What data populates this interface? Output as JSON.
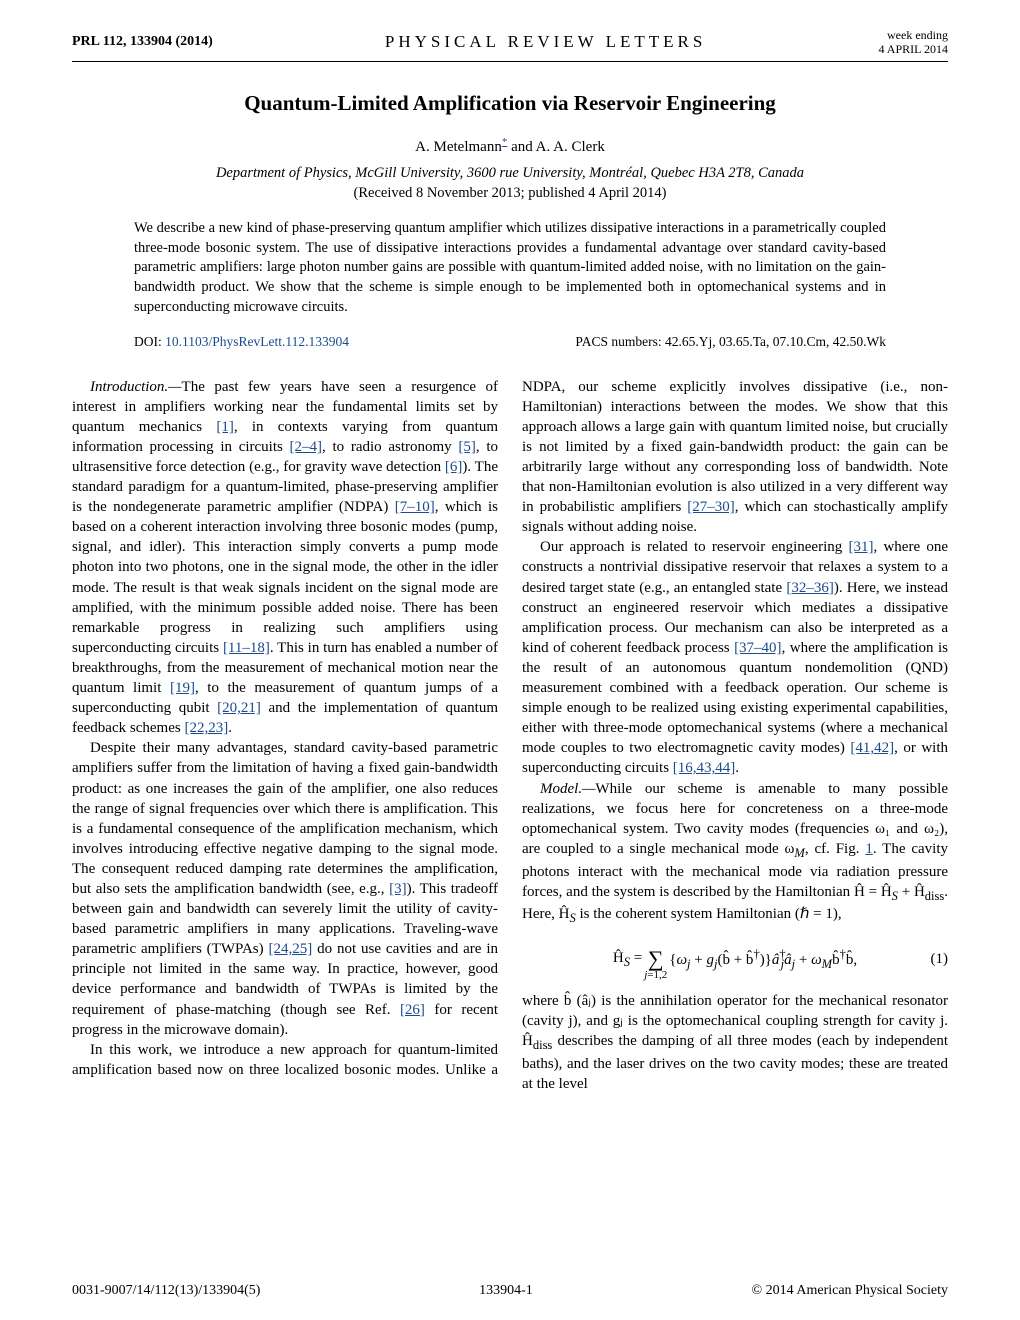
{
  "header": {
    "left": "PRL 112, 133904 (2014)",
    "center": "PHYSICAL REVIEW LETTERS",
    "right_line1": "week ending",
    "right_line2": "4 APRIL 2014"
  },
  "title": "Quantum-Limited Amplification via Reservoir Engineering",
  "authors_pre": "A. Metelmann",
  "authors_post": " and A. A. Clerk",
  "affiliation": "Department of Physics, McGill University, 3600 rue University, Montréal, Quebec H3A 2T8, Canada",
  "dates": "(Received 8 November 2013; published 4 April 2014)",
  "abstract": "We describe a new kind of phase-preserving quantum amplifier which utilizes dissipative interactions in a parametrically coupled three-mode bosonic system. The use of dissipative interactions provides a fundamental advantage over standard cavity-based parametric amplifiers: large photon number gains are possible with quantum-limited added noise, with no limitation on the gain-bandwidth product. We show that the scheme is simple enough to be implemented both in optomechanical systems and in superconducting microwave circuits.",
  "doi_label": "DOI: ",
  "doi_link": "10.1103/PhysRevLett.112.133904",
  "pacs": "PACS numbers: 42.65.Yj, 03.65.Ta, 07.10.Cm, 42.50.Wk",
  "body": {
    "intro_head": "Introduction.—",
    "p1a": "The past few years have seen a resurgence of interest in amplifiers working near the fundamental limits set by quantum mechanics ",
    "r1": "[1]",
    "p1b": ", in contexts varying from quantum information processing in circuits ",
    "r2": "[2–4]",
    "p1c": ", to radio astronomy ",
    "r3": "[5]",
    "p1d": ", to ultrasensitive force detection (e.g., for gravity wave detection ",
    "r4": "[6]",
    "p1e": "). The standard paradigm for a quantum-limited, phase-preserving amplifier is the nondegenerate parametric amplifier (NDPA) ",
    "r5": "[7–10]",
    "p1f": ", which is based on a coherent interaction involving three bosonic modes (pump, signal, and idler). This interaction simply converts a pump mode photon into two photons, one in the signal mode, the other in the idler mode. The result is that weak signals incident on the signal mode are amplified, with the minimum possible added noise. There has been remarkable progress in realizing such amplifiers using superconducting circuits ",
    "r6": "[11–18]",
    "p1g": ". This in turn has enabled a number of breakthroughs, from the measurement of mechanical motion near the quantum limit ",
    "r7": "[19]",
    "p1h": ", to the measurement of quantum jumps of a superconducting qubit ",
    "r8": "[20,21]",
    "p1i": " and the implementation of quantum feedback schemes ",
    "r9": "[22,23]",
    "p1j": ".",
    "p2a": "Despite their many advantages, standard cavity-based parametric amplifiers suffer from the limitation of having a fixed gain-bandwidth product: as one increases the gain of the amplifier, one also reduces the range of signal frequencies over which there is amplification. This is a fundamental consequence of the amplification mechanism, which involves introducing effective negative damping to the signal mode. The consequent reduced damping rate determines the amplification, but also sets the amplification bandwidth (see, e.g., ",
    "r10": "[3]",
    "p2b": "). This tradeoff between gain and bandwidth can severely limit the utility of cavity-based parametric amplifiers in many applications. Traveling-wave parametric amplifiers (TWPAs) ",
    "r11": "[24,25]",
    "p2c": " do not use cavities and are in principle not limited in the same way. In practice, however, good device performance and bandwidth of TWPAs is limited by the requirement of phase-matching (though see Ref. ",
    "r12": "[26]",
    "p2d": " for recent progress in the microwave domain).",
    "p3": "In this work, we introduce a new approach for quantum-limited amplification based now on three localized bosonic ",
    "p4a": "modes. Unlike a NDPA, our scheme explicitly involves dissipative (i.e., non-Hamiltonian) interactions between the modes. We show that this approach allows a large gain with quantum limited noise, but crucially is not limited by a fixed gain-bandwidth product: the gain can be arbitrarily large without any corresponding loss of bandwidth. Note that non-Hamiltonian evolution is also utilized in a very different way in probabilistic amplifiers ",
    "r13": "[27–30]",
    "p4b": ", which can stochastically amplify signals without adding noise.",
    "p5a": "Our approach is related to reservoir engineering ",
    "r14": "[31]",
    "p5b": ", where one constructs a nontrivial dissipative reservoir that relaxes a system to a desired target state (e.g., an entangled state ",
    "r15": "[32–36]",
    "p5c": "). Here, we instead construct an engineered reservoir which mediates a dissipative amplification process. Our mechanism can also be interpreted as a kind of coherent feedback process ",
    "r16": "[37–40]",
    "p5d": ", where the amplification is the result of an autonomous quantum nondemolition (QND) measurement combined with a feedback operation. Our scheme is simple enough to be realized using existing experimental capabilities, either with three-mode optomechanical systems (where a mechanical mode couples to two electromagnetic cavity modes) ",
    "r17": "[41,42]",
    "p5e": ", or with superconducting circuits ",
    "r18": "[16,43,44]",
    "p5f": ".",
    "model_head": "Model.—",
    "p6a": "While our scheme is amenable to many possible realizations, we focus here for concreteness on a three-mode optomechanical system. Two cavity modes (frequencies ω₁ and ω₂), are coupled to a single mechanical mode ω",
    "p6a_sub": "M",
    "p6a2": ", cf. Fig. ",
    "fig1": "1",
    "p6b": ". The cavity photons interact with the mechanical mode via radiation pressure forces, and the system is described by the Hamiltonian ",
    "p6c": ". Here, ",
    "p6d": " is the coherent system Hamiltonian (ℏ = 1),",
    "eq1_num": "(1)",
    "p7a": "where b̂ (âⱼ) is the annihilation operator for the mechanical resonator (cavity j), and gⱼ is the optomechanical coupling strength for cavity j. ",
    "p7b": " describes the damping of all three modes (each by independent baths), and the laser drives on the two cavity modes; these are treated at the level"
  },
  "footer": {
    "left": "0031-9007/14/112(13)/133904(5)",
    "center": "133904-1",
    "right": "© 2014 American Physical Society"
  },
  "colors": {
    "link": "#1a4b8c",
    "text": "#000000",
    "bg": "#ffffff"
  }
}
